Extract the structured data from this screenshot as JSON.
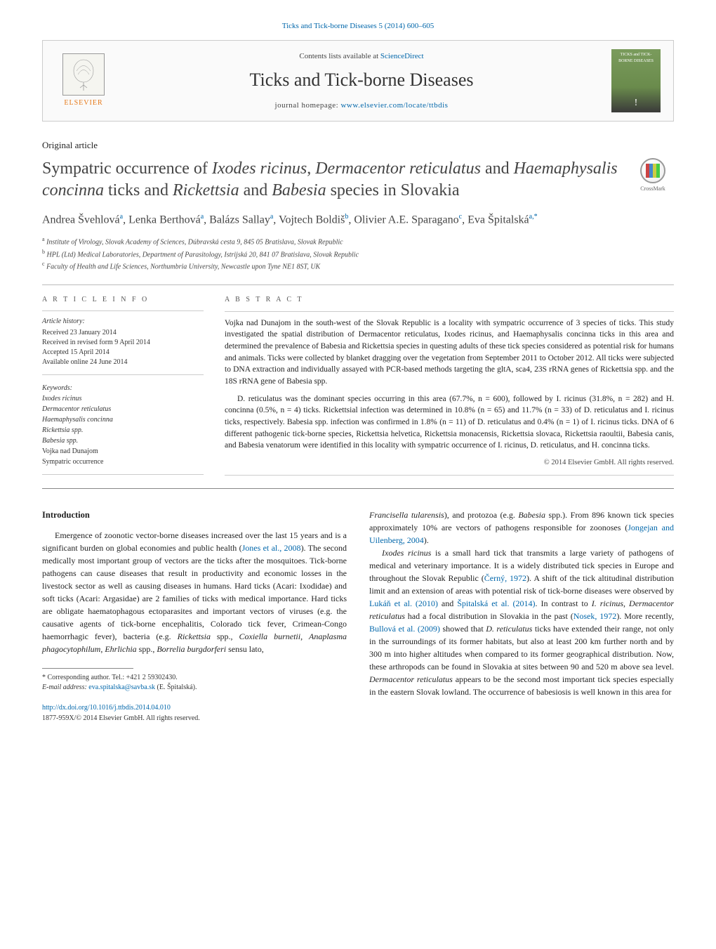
{
  "header": {
    "citation": "Ticks and Tick-borne Diseases 5 (2014) 600–605",
    "contents_prefix": "Contents lists available at ",
    "contents_link": "ScienceDirect",
    "journal_title": "Ticks and Tick-borne Diseases",
    "homepage_prefix": "journal homepage: ",
    "homepage_link": "www.elsevier.com/locate/ttbdis",
    "elsevier_label": "ELSEVIER",
    "cover_text_top": "TICKS and TICK-BORNE DISEASES"
  },
  "article": {
    "type": "Original article",
    "title_html": "Sympatric occurrence of <em>Ixodes ricinus</em>, <em>Dermacentor reticulatus</em> and <em>Haemaphysalis concinna</em> ticks and <em>Rickettsia</em> and <em>Babesia</em> species in Slovakia",
    "crossmark_label": "CrossMark",
    "authors_html": "Andrea Švehlová<sup>a</sup>, Lenka Berthová<sup>a</sup>, Balázs Sallay<sup>a</sup>, Vojtech Boldiš<sup>b</sup>, Olivier A.E. Sparagano<sup>c</sup>, Eva Špitalská<sup>a,*</sup>",
    "affiliations": {
      "a": "Institute of Virology, Slovak Academy of Sciences, Dúbravská cesta 9, 845 05 Bratislava, Slovak Republic",
      "b": "HPL (Ltd) Medical Laboratories, Department of Parasitology, Istrijská 20, 841 07 Bratislava, Slovak Republic",
      "c": "Faculty of Health and Life Sciences, Northumbria University, Newcastle upon Tyne NE1 8ST, UK"
    }
  },
  "info": {
    "heading": "A R T I C L E   I N F O",
    "history_label": "Article history:",
    "history": {
      "received": "Received 23 January 2014",
      "revised": "Received in revised form 9 April 2014",
      "accepted": "Accepted 15 April 2014",
      "online": "Available online 24 June 2014"
    },
    "keywords_label": "Keywords:",
    "keywords": [
      "Ixodes ricinus",
      "Dermacentor reticulatus",
      "Haemaphysalis concinna",
      "Rickettsia spp.",
      "Babesia spp.",
      "Vojka nad Dunajom",
      "Sympatric occurrence"
    ]
  },
  "abstract": {
    "heading": "A B S T R A C T",
    "p1": "Vojka nad Dunajom in the south-west of the Slovak Republic is a locality with sympatric occurrence of 3 species of ticks. This study investigated the spatial distribution of Dermacentor reticulatus, Ixodes ricinus, and Haemaphysalis concinna ticks in this area and determined the prevalence of Babesia and Rickettsia species in questing adults of these tick species considered as potential risk for humans and animals. Ticks were collected by blanket dragging over the vegetation from September 2011 to October 2012. All ticks were subjected to DNA extraction and individually assayed with PCR-based methods targeting the gltA, sca4, 23S rRNA genes of Rickettsia spp. and the 18S rRNA gene of Babesia spp.",
    "p2": "D. reticulatus was the dominant species occurring in this area (67.7%, n = 600), followed by I. ricinus (31.8%, n = 282) and H. concinna (0.5%, n = 4) ticks. Rickettsial infection was determined in 10.8% (n = 65) and 11.7% (n = 33) of D. reticulatus and I. ricinus ticks, respectively. Babesia spp. infection was confirmed in 1.8% (n = 11) of D. reticulatus and 0.4% (n = 1) of I. ricinus ticks. DNA of 6 different pathogenic tick-borne species, Rickettsia helvetica, Rickettsia monacensis, Rickettsia slovaca, Rickettsia raoultii, Babesia canis, and Babesia venatorum were identified in this locality with sympatric occurrence of I. ricinus, D. reticulatus, and H. concinna ticks.",
    "copyright": "© 2014 Elsevier GmbH. All rights reserved."
  },
  "body": {
    "intro_heading": "Introduction",
    "col1_p1_html": "Emergence of zoonotic vector-borne diseases increased over the last 15 years and is a significant burden on global economies and public health (<a href=\"#\">Jones et al., 2008</a>). The second medically most important group of vectors are the ticks after the mosquitoes. Tick-borne pathogens can cause diseases that result in productivity and economic losses in the livestock sector as well as causing diseases in humans. Hard ticks (Acari: Ixodidae) and soft ticks (Acari: Argasidae) are 2 families of ticks with medical importance. Hard ticks are obligate haematophagous ectoparasites and important vectors of viruses (e.g. the causative agents of tick-borne encephalitis, Colorado tick fever, Crimean-Congo haemorrhagic fever), bacteria (e.g. <em>Rickettsia</em> spp., <em>Coxiella burnetii</em>, <em>Anaplasma phagocytophilum</em>, <em>Ehrlichia</em> spp., <em>Borrelia burgdorferi</em> sensu lato,",
    "col2_p1_html": "<em>Francisella tularensis</em>), and protozoa (e.g. <em>Babesia</em> spp.). From 896 known tick species approximately 10% are vectors of pathogens responsible for zoonoses (<a href=\"#\">Jongejan and Uilenberg, 2004</a>).",
    "col2_p2_html": "<em>Ixodes ricinus</em> is a small hard tick that transmits a large variety of pathogens of medical and veterinary importance. It is a widely distributed tick species in Europe and throughout the Slovak Republic (<a href=\"#\">Černý, 1972</a>). A shift of the tick altitudinal distribution limit and an extension of areas with potential risk of tick-borne diseases were observed by <a href=\"#\">Lukáň et al. (2010)</a> and <a href=\"#\">Špitalská et al. (2014)</a>. In contrast to <em>I. ricinus</em>, <em>Dermacentor reticulatus</em> had a focal distribution in Slovakia in the past (<a href=\"#\">Nosek, 1972</a>). More recently, <a href=\"#\">Bullová et al. (2009)</a> showed that <em>D. reticulatus</em> ticks have extended their range, not only in the surroundings of its former habitats, but also at least 200 km further north and by 300 m into higher altitudes when compared to its former geographical distribution. Now, these arthropods can be found in Slovakia at sites between 90 and 520 m above sea level. <em>Dermacentor reticulatus</em> appears to be the second most important tick species especially in the eastern Slovak lowland. The occurrence of babesiosis is well known in this area for"
  },
  "footnotes": {
    "corresponding": "* Corresponding author. Tel.: +421 2 59302430.",
    "email_label": "E-mail address: ",
    "email": "eva.spitalska@savba.sk",
    "email_suffix": " (E. Špitalská)."
  },
  "doi": {
    "link": "http://dx.doi.org/10.1016/j.ttbdis.2014.04.010",
    "issn_line": "1877-959X/© 2014 Elsevier GmbH. All rights reserved."
  },
  "colors": {
    "link": "#0066aa",
    "elsevier_orange": "#e67817",
    "text": "#222222",
    "border": "#cccccc"
  }
}
